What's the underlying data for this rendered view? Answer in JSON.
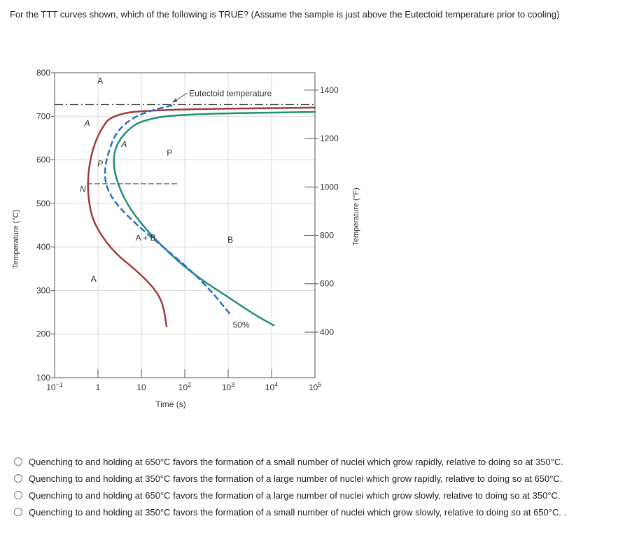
{
  "question": {
    "text": "For the TTT curves shown, which of the following is TRUE? (Assume the sample is just above the Eutectoid temperature prior to cooling)"
  },
  "chart_data": {
    "type": "line",
    "y_left_label": "Temperature (°C)",
    "y_right_label": "Temperature (°F)",
    "xlabel": "Time (s)",
    "y_left_range": [
      100,
      800
    ],
    "y_right_range": [
      212,
      1472
    ],
    "x_range_log10": [
      -1,
      5
    ],
    "x_scale": "log",
    "grid": true,
    "y_left_ticks": [
      "800",
      "700",
      "600",
      "500",
      "400",
      "300",
      "200",
      "100"
    ],
    "y_left_tick_values": [
      800,
      700,
      600,
      500,
      400,
      300,
      200,
      100
    ],
    "y_right_ticks": [
      "1400",
      "1200",
      "1000",
      "800",
      "600",
      "400"
    ],
    "y_right_tick_values_F": [
      1400,
      1200,
      1000,
      800,
      600,
      400
    ],
    "x_ticks": [
      {
        "base": "10",
        "exp": "−1",
        "log10": -1
      },
      {
        "base": "1",
        "exp": "",
        "log10": 0
      },
      {
        "base": "10",
        "exp": "",
        "log10": 1
      },
      {
        "base": "10",
        "exp": "2",
        "log10": 2
      },
      {
        "base": "10",
        "exp": "3",
        "log10": 3
      },
      {
        "base": "10",
        "exp": "4",
        "log10": 4
      },
      {
        "base": "10",
        "exp": "5",
        "log10": 5
      }
    ],
    "eutectoid": {
      "label": "Eutectoid temperature",
      "temp_C": 727
    },
    "series": [
      {
        "color": "#a33a3a",
        "style": "solid",
        "points": [
          [
            5.0,
            720
          ],
          [
            1.0,
            715
          ],
          [
            0.3,
            700
          ],
          [
            0.1,
            675
          ],
          [
            -0.07,
            640
          ],
          [
            -0.18,
            600
          ],
          [
            -0.23,
            560
          ],
          [
            -0.23,
            520
          ],
          [
            -0.15,
            470
          ],
          [
            0.05,
            430
          ],
          [
            0.4,
            385
          ],
          [
            0.9,
            345
          ],
          [
            1.3,
            305
          ],
          [
            1.5,
            270
          ],
          [
            1.58,
            218
          ]
        ]
      },
      {
        "color": "#1f8f75",
        "style": "solid",
        "points": [
          [
            5.0,
            710
          ],
          [
            1.8,
            705
          ],
          [
            1.0,
            690
          ],
          [
            0.7,
            670
          ],
          [
            0.45,
            640
          ],
          [
            0.35,
            605
          ],
          [
            0.4,
            560
          ],
          [
            0.65,
            500
          ],
          [
            1.1,
            440
          ],
          [
            1.7,
            380
          ],
          [
            2.3,
            330
          ],
          [
            3.0,
            285
          ],
          [
            3.6,
            245
          ],
          [
            4.05,
            220
          ]
        ]
      },
      {
        "color": "#2a6ec6",
        "style": "dashed",
        "label": "50%",
        "points": [
          [
            1.7,
            725
          ],
          [
            1.1,
            710
          ],
          [
            0.7,
            690
          ],
          [
            0.4,
            660
          ],
          [
            0.25,
            620
          ],
          [
            0.15,
            580
          ],
          [
            0.18,
            540
          ],
          [
            0.4,
            500
          ],
          [
            0.9,
            450
          ],
          [
            1.5,
            400
          ],
          [
            2.1,
            350
          ],
          [
            2.6,
            300
          ],
          [
            3.05,
            245
          ]
        ]
      },
      {
        "color": "#555555",
        "style": "dashed",
        "points": [
          [
            -0.25,
            545
          ],
          [
            1.85,
            545
          ]
        ]
      }
    ],
    "annotations": [
      {
        "text": "A",
        "x": 0.05,
        "y": 775,
        "italic": false
      },
      {
        "text": "A",
        "x": -0.25,
        "y": 678,
        "italic": true
      },
      {
        "text": "P",
        "x": 1.65,
        "y": 610,
        "italic": false
      },
      {
        "text": "N",
        "x": -0.35,
        "y": 526,
        "italic": true
      },
      {
        "text": "P",
        "x": 0.05,
        "y": 585,
        "italic": true
      },
      {
        "text": "A",
        "x": 0.6,
        "y": 630,
        "italic": true
      },
      {
        "text": "A + B",
        "x": 1.1,
        "y": 415,
        "italic": false
      },
      {
        "text": "B",
        "x": 3.05,
        "y": 410,
        "italic": false
      },
      {
        "text": "A",
        "x": -0.1,
        "y": 320,
        "italic": false
      },
      {
        "text": "50%",
        "x": 3.3,
        "y": 215,
        "italic": false
      }
    ]
  },
  "options": [
    {
      "text": "Quenching to and holding at 650°C favors the formation of a small number of nuclei which grow rapidly, relative to doing so at 350°C."
    },
    {
      "text": "Quenching to and holding at 350°C favors the formation of a large number of nuclei which grow rapidly, relative to doing so at 650°C."
    },
    {
      "text": "Quenching to and holding at 650°C favors the formation of a large number of nuclei which grow slowly, relative to doing so at 350°C."
    },
    {
      "text": "Quenching to and holding at 350°C favors the formation of a small number of nuclei which grow slowly, relative to doing so at 650°C. ."
    }
  ]
}
